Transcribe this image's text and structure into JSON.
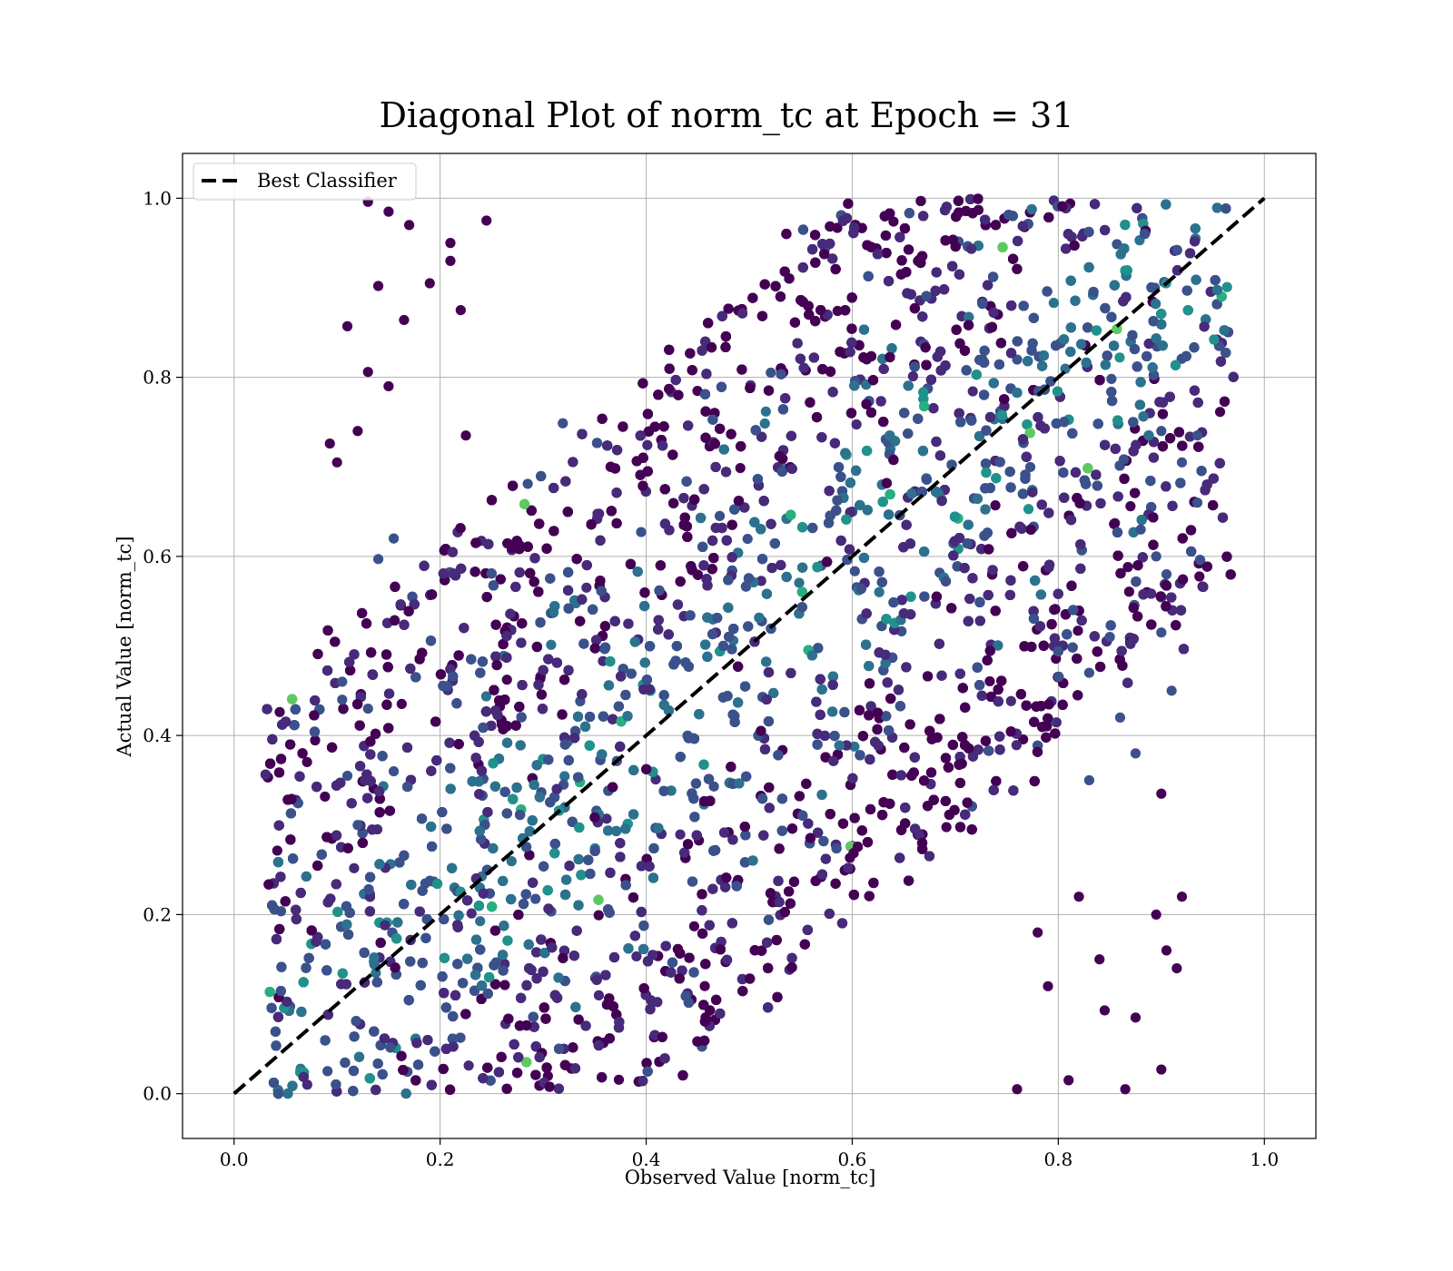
{
  "chart_data": {
    "type": "scatter",
    "title": "Diagonal Plot of norm_tc at Epoch = 31",
    "xlabel": "Observed Value [norm_tc]",
    "ylabel": "Actual Value [norm_tc]",
    "xlim": [
      -0.05,
      1.05
    ],
    "ylim": [
      -0.05,
      1.05
    ],
    "xticks": [
      0.0,
      0.2,
      0.4,
      0.6,
      0.8,
      1.0
    ],
    "yticks": [
      0.0,
      0.2,
      0.4,
      0.6,
      0.8,
      1.0
    ],
    "xtick_labels": [
      "0.0",
      "0.2",
      "0.4",
      "0.6",
      "0.8",
      "1.0"
    ],
    "ytick_labels": [
      "0.0",
      "0.2",
      "0.4",
      "0.6",
      "0.8",
      "1.0"
    ],
    "grid": true,
    "legend": {
      "placement": "top-left",
      "entries": [
        "Best Classifier"
      ]
    },
    "reference_line": {
      "name": "Best Classifier",
      "style": "dashed",
      "color": "#000000",
      "x": [
        0.0,
        1.0
      ],
      "y": [
        0.0,
        1.0
      ]
    },
    "colormap": "viridis",
    "marker_colors": [
      "#440154",
      "#472a7a",
      "#3b518b",
      "#2c728e",
      "#21918c",
      "#28ae80",
      "#5ec962"
    ],
    "series": [
      {
        "points": [
          [
            0.13,
            0.996
          ],
          [
            0.15,
            0.985
          ],
          [
            0.17,
            0.97
          ],
          [
            0.11,
            0.857
          ],
          [
            0.13,
            0.806
          ],
          [
            0.093,
            0.726
          ],
          [
            0.1,
            0.705
          ],
          [
            0.14,
            0.902
          ],
          [
            0.165,
            0.864
          ],
          [
            0.15,
            0.79
          ],
          [
            0.155,
            0.62
          ],
          [
            0.14,
            0.597
          ],
          [
            0.105,
            0.46
          ],
          [
            0.11,
            0.355
          ],
          [
            0.19,
            0.905
          ],
          [
            0.21,
            0.95
          ],
          [
            0.245,
            0.975
          ],
          [
            0.22,
            0.875
          ],
          [
            0.225,
            0.735
          ],
          [
            0.935,
            0.66
          ],
          [
            0.91,
            0.45
          ],
          [
            0.9,
            0.335
          ],
          [
            0.9,
            0.515
          ],
          [
            0.875,
            0.38
          ],
          [
            0.92,
            0.22
          ],
          [
            0.905,
            0.16
          ],
          [
            0.915,
            0.14
          ],
          [
            0.875,
            0.085
          ],
          [
            0.865,
            0.005
          ],
          [
            0.9,
            0.027
          ],
          [
            0.845,
            0.093
          ],
          [
            0.81,
            0.015
          ],
          [
            0.76,
            0.005
          ],
          [
            0.12,
            0.74
          ],
          [
            0.105,
            0.44
          ],
          [
            0.895,
            0.6
          ],
          [
            0.88,
            0.63
          ],
          [
            0.85,
            0.51
          ],
          [
            0.83,
            0.47
          ],
          [
            0.935,
            0.735
          ],
          [
            0.92,
            0.705
          ],
          [
            0.9,
            0.74
          ],
          [
            0.83,
            0.35
          ],
          [
            0.82,
            0.22
          ],
          [
            0.79,
            0.12
          ],
          [
            0.78,
            0.18
          ],
          [
            0.84,
            0.15
          ],
          [
            0.86,
            0.42
          ],
          [
            0.13,
            0.43
          ],
          [
            0.155,
            0.36
          ],
          [
            0.12,
            0.3
          ],
          [
            0.21,
            0.93
          ],
          [
            0.905,
            0.58
          ],
          [
            0.895,
            0.2
          ]
        ]
      }
    ]
  }
}
